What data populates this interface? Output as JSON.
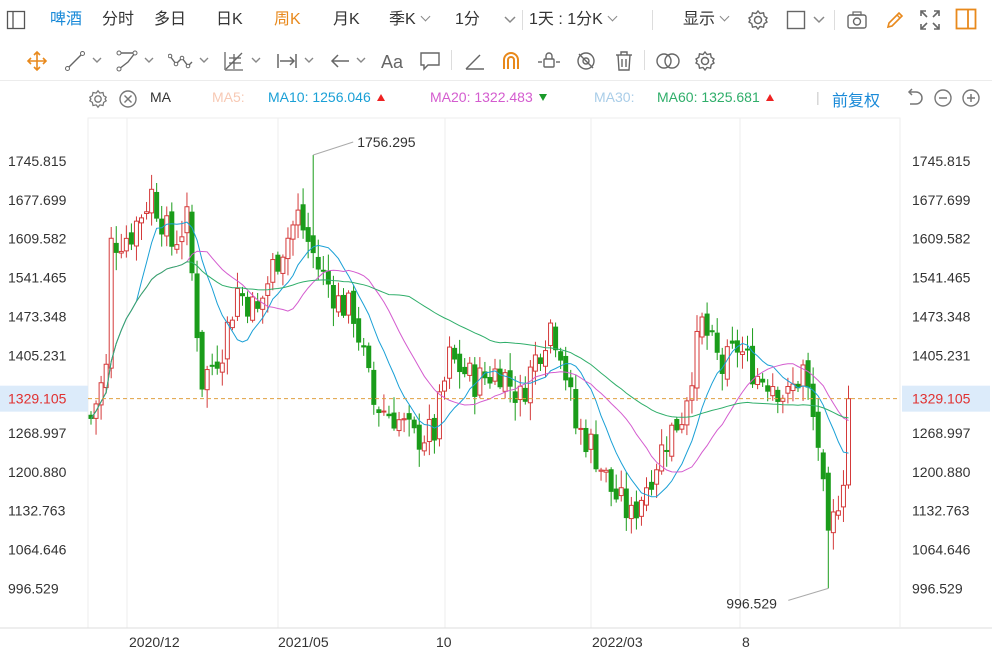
{
  "toolbar": {
    "stock_name": "啤酒",
    "periods": [
      {
        "label": "分时",
        "active": false
      },
      {
        "label": "多日",
        "active": false
      },
      {
        "label": "日K",
        "active": false
      },
      {
        "label": "周K",
        "active": true
      },
      {
        "label": "月K",
        "active": false
      },
      {
        "label": "季K",
        "active": false,
        "dropdown": true
      },
      {
        "label": "1分",
        "active": false,
        "dropdown": true
      }
    ],
    "range_label": "1天 : 1分K",
    "display_label": "显示"
  },
  "indicators": {
    "type_label": "MA",
    "ma5": {
      "label": "MA5:",
      "value": "",
      "color": "#f7c9b4"
    },
    "ma10": {
      "label": "MA10:",
      "value": "1256.046",
      "color": "#1aa0d6",
      "trend": "up"
    },
    "ma20": {
      "label": "MA20:",
      "value": "1322.483",
      "color": "#d45ccf",
      "trend": "down"
    },
    "ma30": {
      "label": "MA30:",
      "value": "",
      "color": "#a9cde8"
    },
    "ma60": {
      "label": "MA60:",
      "value": "1325.681",
      "color": "#2fae6a",
      "trend": "up"
    },
    "adjust_label": "前复权"
  },
  "chart_data": {
    "type": "candlestick",
    "y_ticks": [
      "1745.815",
      "1677.699",
      "1609.582",
      "1541.465",
      "1473.348",
      "1405.231",
      "1268.997",
      "1200.880",
      "1132.763",
      "1064.646",
      "996.529"
    ],
    "y_tick_values": [
      1745.815,
      1677.699,
      1609.582,
      1541.465,
      1473.348,
      1405.231,
      1268.997,
      1200.88,
      1132.763,
      1064.646,
      996.529
    ],
    "current_price": "1329.105",
    "current_value": 1329.105,
    "x_ticks": [
      "2020/12",
      "2021/05",
      "10",
      "2022/03",
      "8"
    ],
    "max_label": "1756.295",
    "max_value": 1756.295,
    "min_label": "996.529",
    "min_value": 996.529,
    "colors": {
      "up": "#d43a3a",
      "down": "#1a9c1a",
      "ma10": "#1aa0d6",
      "ma20": "#d45ccf",
      "ma60": "#2fae6a",
      "price_line": "#e0a040"
    }
  }
}
